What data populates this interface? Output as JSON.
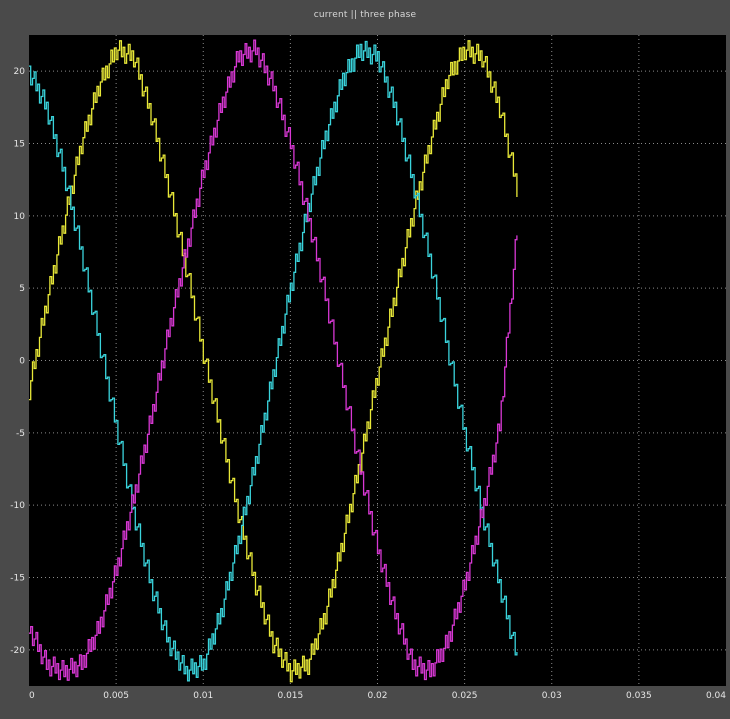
{
  "window": {
    "title": "current || three phase"
  },
  "chart_data": {
    "type": "line",
    "title": "current || three phase",
    "xlabel": "",
    "ylabel": "",
    "xlim": [
      0,
      0.04
    ],
    "ylim": [
      -22.5,
      22.5
    ],
    "x_ticks": [
      0,
      0.005,
      0.01,
      0.015,
      0.02,
      0.025,
      0.03,
      0.035,
      0.04
    ],
    "x_tick_labels": [
      "0",
      "0.005",
      "0.01",
      "0.015",
      "0.02",
      "0.025",
      "0.03",
      "0.035",
      "0.04"
    ],
    "y_ticks": [
      20,
      15,
      10,
      5,
      0,
      -5,
      -10,
      -15,
      -20
    ],
    "y_tick_labels": [
      "20",
      "15",
      "10",
      "5",
      "0",
      "-5",
      "-10",
      "-15",
      "-20"
    ],
    "grid": true,
    "legend": "none",
    "background_color": "#000000",
    "frame_color": "#4a4a4a",
    "series": [
      {
        "color": "#e8e838",
        "x": [
          0,
          0.001,
          0.002,
          0.003,
          0.004,
          0.005,
          0.006,
          0.007,
          0.008,
          0.009,
          0.01,
          0.011,
          0.012,
          0.013,
          0.014,
          0.015,
          0.016,
          0.017,
          0.018,
          0.019,
          0.02,
          0.021,
          0.022,
          0.023,
          0.024,
          0.025,
          0.026,
          0.027,
          0.028
        ],
        "y": [
          -2,
          4,
          9.5,
          15,
          19,
          21.5,
          21,
          17,
          12,
          6.5,
          0.5,
          -5,
          -10.5,
          -15.5,
          -19.5,
          -21.5,
          -21,
          -17.5,
          -12.5,
          -7,
          -1,
          4.5,
          10,
          15,
          19.5,
          21.5,
          21,
          17.5,
          12
        ]
      },
      {
        "color": "#3ad4dc",
        "x": [
          0,
          0.001,
          0.002,
          0.003,
          0.004,
          0.005,
          0.006,
          0.007,
          0.008,
          0.009,
          0.01,
          0.011,
          0.012,
          0.013,
          0.014,
          0.015,
          0.016,
          0.017,
          0.018,
          0.019,
          0.02,
          0.021,
          0.022,
          0.023,
          0.024,
          0.025,
          0.026,
          0.027,
          0.028
        ],
        "y": [
          20,
          17.5,
          13,
          7.5,
          1.5,
          -4.5,
          -10.5,
          -15.5,
          -19.5,
          -21.5,
          -21,
          -17.5,
          -12.5,
          -7,
          -1,
          5,
          10.5,
          15.5,
          19.5,
          21.5,
          21,
          17.5,
          12.5,
          7,
          1,
          -5,
          -10.5,
          -15.5,
          -20.5
        ]
      },
      {
        "color": "#d838d4",
        "x": [
          0,
          0.001,
          0.002,
          0.003,
          0.004,
          0.005,
          0.006,
          0.007,
          0.008,
          0.009,
          0.01,
          0.011,
          0.012,
          0.013,
          0.014,
          0.015,
          0.016,
          0.017,
          0.018,
          0.019,
          0.02,
          0.021,
          0.022,
          0.023,
          0.024,
          0.025,
          0.026,
          0.027,
          0.028
        ],
        "y": [
          -18.5,
          -21,
          -21.5,
          -21,
          -18.5,
          -14.5,
          -9.5,
          -4,
          2,
          7.5,
          13,
          17.5,
          21,
          21.5,
          19,
          15,
          10,
          4.5,
          -1.5,
          -7.5,
          -13,
          -17.5,
          -21,
          -21.5,
          -19.5,
          -15.5,
          -10.5,
          -4.5,
          9
        ]
      }
    ]
  }
}
